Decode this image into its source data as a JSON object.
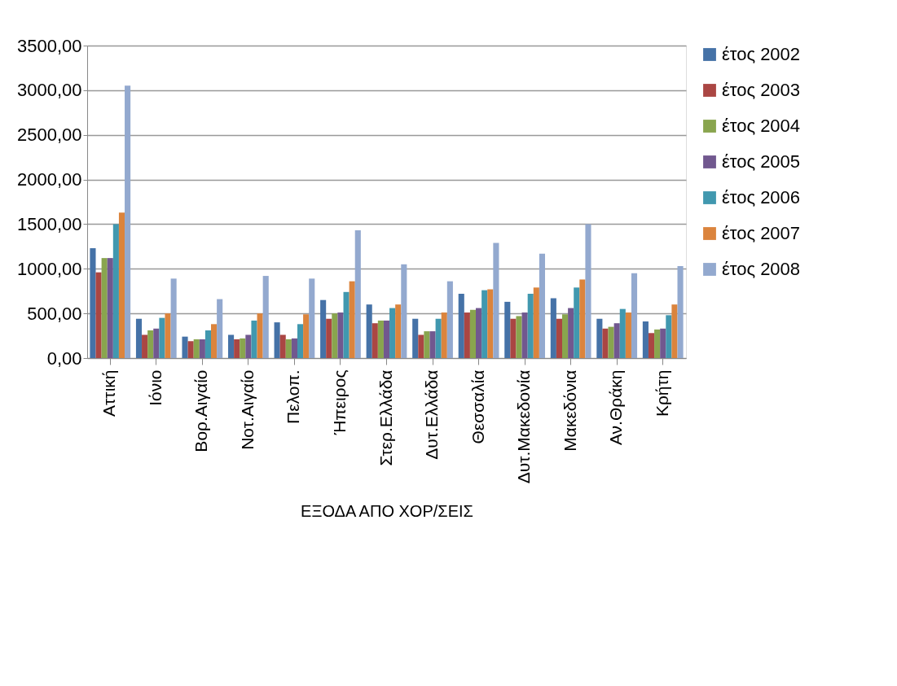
{
  "chart_data": {
    "type": "bar",
    "xlabel": "ΕΞΟΔΑ ΑΠΟ ΧΟΡ/ΣΕΙΣ",
    "categories": [
      "Αττική",
      "Ιόνιο",
      "Βορ.Αιγαίο",
      "Νοτ.Αιγαίο",
      "Πελοπ.",
      "Ήπειρος",
      "Στερ.Ελλάδα",
      "Δυτ.Ελλάδα",
      "Θεσσαλία",
      "Δυτ.Μακεδονία",
      "Μακεδόνια",
      "Αν.Θράκη",
      "Κρήτη"
    ],
    "series": [
      {
        "name": "έτος 2002",
        "color": "#4572a7",
        "values": [
          1230,
          440,
          240,
          260,
          400,
          650,
          600,
          440,
          720,
          630,
          670,
          440,
          410
        ]
      },
      {
        "name": "έτος 2003",
        "color": "#aa4643",
        "values": [
          960,
          260,
          190,
          210,
          260,
          440,
          390,
          260,
          510,
          440,
          440,
          330,
          280
        ]
      },
      {
        "name": "έτος 2004",
        "color": "#89a54e",
        "values": [
          1120,
          310,
          210,
          220,
          210,
          500,
          420,
          300,
          540,
          470,
          490,
          350,
          320
        ]
      },
      {
        "name": "έτος 2005",
        "color": "#71588f",
        "values": [
          1120,
          330,
          210,
          260,
          220,
          510,
          420,
          300,
          560,
          510,
          560,
          390,
          330
        ]
      },
      {
        "name": "έτος 2006",
        "color": "#4198af",
        "values": [
          1500,
          450,
          310,
          420,
          380,
          740,
          560,
          440,
          760,
          720,
          790,
          550,
          480
        ]
      },
      {
        "name": "έτος 2007",
        "color": "#db843d",
        "values": [
          1630,
          500,
          380,
          500,
          490,
          860,
          600,
          510,
          770,
          790,
          880,
          510,
          600
        ]
      },
      {
        "name": "έτος 2008",
        "color": "#93a9cf",
        "values": [
          3050,
          890,
          660,
          920,
          890,
          1430,
          1050,
          860,
          1290,
          1170,
          1500,
          950,
          1030
        ]
      }
    ],
    "ylim": [
      0,
      3500
    ],
    "yticks": [
      {
        "value": 0,
        "label": "0,00"
      },
      {
        "value": 500,
        "label": "500,00"
      },
      {
        "value": 1000,
        "label": "1000,00"
      },
      {
        "value": 1500,
        "label": "1500,00"
      },
      {
        "value": 2000,
        "label": "2000,00"
      },
      {
        "value": 2500,
        "label": "2500,00"
      },
      {
        "value": 3000,
        "label": "3000,00"
      },
      {
        "value": 3500,
        "label": "3500,00"
      }
    ],
    "grid": "y",
    "legend": "right"
  }
}
